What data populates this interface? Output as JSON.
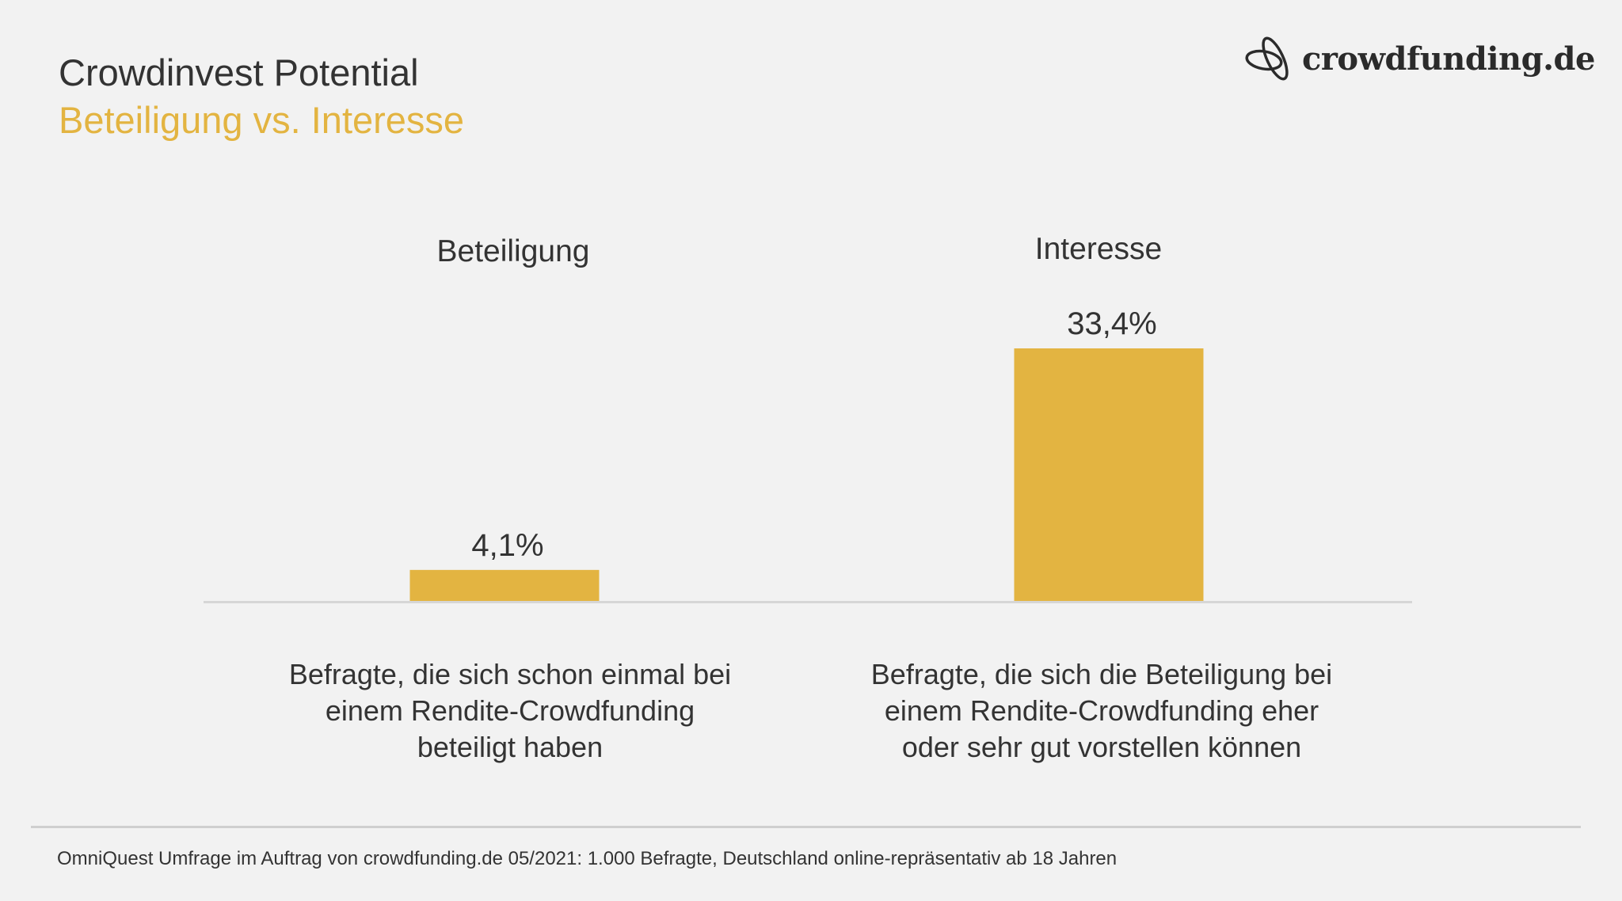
{
  "header": {
    "title": "Crowdinvest Potential",
    "subtitle": "Beteiligung vs. Interesse",
    "logo_text": "crowdfunding.de",
    "logo_icon": "knot-icon"
  },
  "colors": {
    "accent": "#E3B441",
    "text": "#333333",
    "background": "#F2F2F2",
    "baseline": "#D6D6D6"
  },
  "chart_data": {
    "type": "bar",
    "categories": [
      "Beteiligung",
      "Interesse"
    ],
    "values": [
      4.1,
      33.4
    ],
    "value_labels": [
      "4,1%",
      "33,4%"
    ],
    "descriptions": [
      [
        "Befragte, die sich schon einmal bei",
        "einem Rendite-Crowdfunding",
        "beteiligt haben"
      ],
      [
        "Befragte, die sich die Beteiligung bei",
        "einem Rendite-Crowdfunding eher",
        "oder sehr gut vorstellen können"
      ]
    ],
    "unit": "%",
    "grid": false,
    "axes_visible": false
  },
  "footer": {
    "source": "OmniQuest Umfrage im Auftrag von crowdfunding.de 05/2021: 1.000 Befragte, Deutschland online-repräsentativ ab 18 Jahren"
  }
}
